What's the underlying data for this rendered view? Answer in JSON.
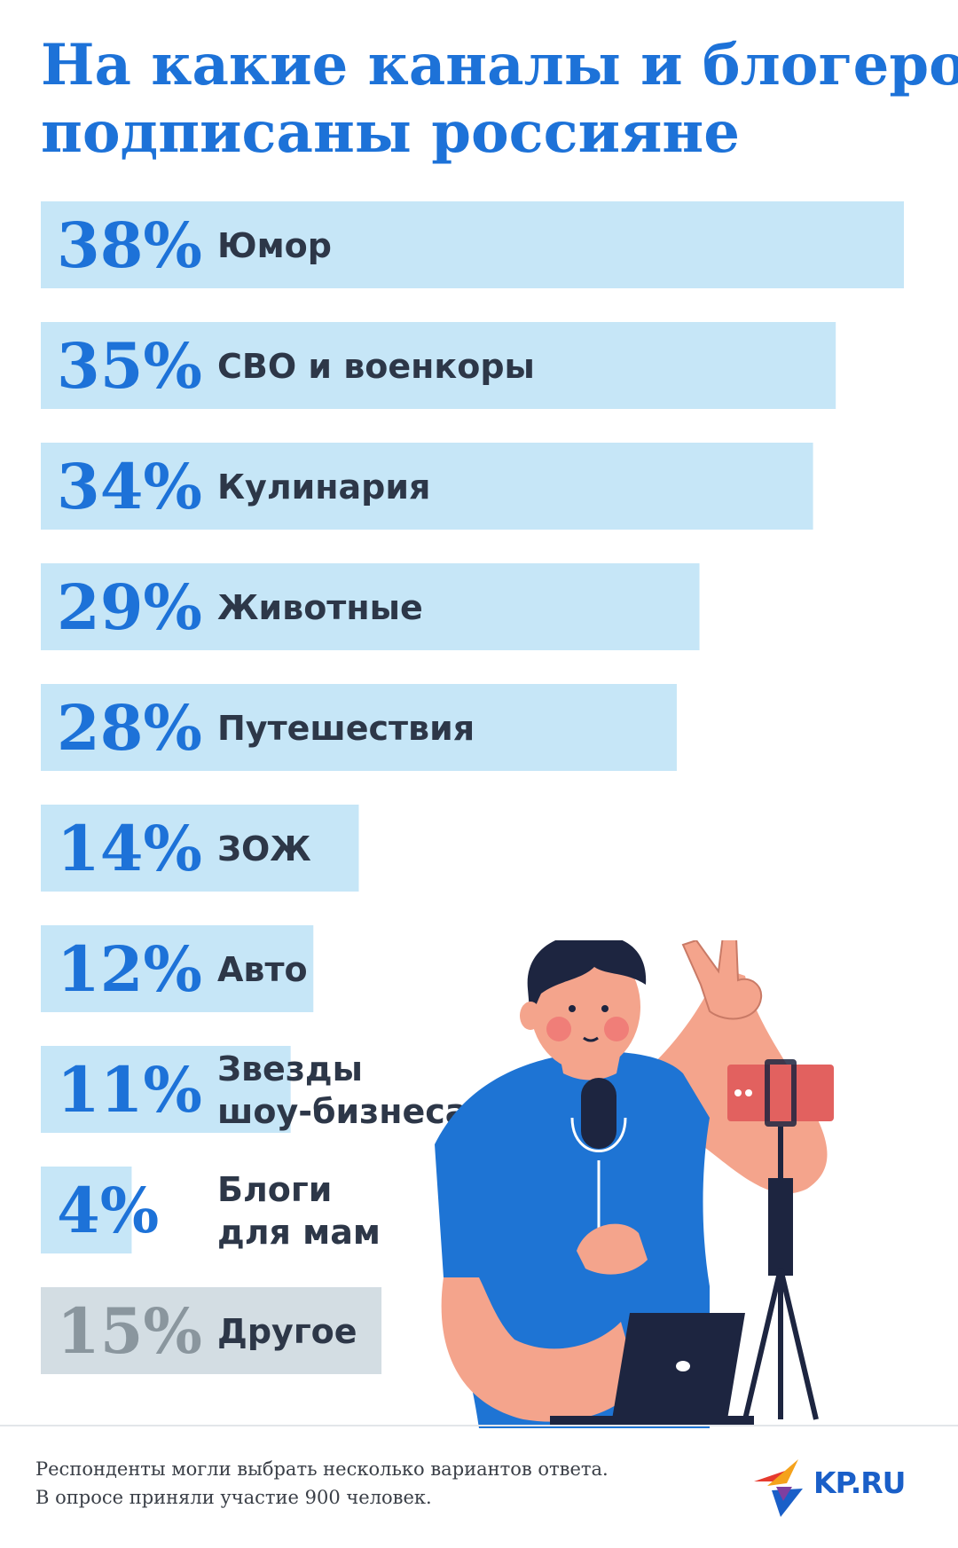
{
  "header": {
    "title_line1": "На какие каналы и блогеров",
    "title_line2": "подписаны россияне"
  },
  "chart_data": {
    "type": "bar",
    "orientation": "horizontal",
    "title": "На какие каналы и блогеров подписаны россияне",
    "unit": "%",
    "categories": [
      "Юмор",
      "СВО и военкоры",
      "Кулинария",
      "Животные",
      "Путешествия",
      "ЗОЖ",
      "Авто",
      "Звезды шоу-бизнеса",
      "Блоги для мам",
      "Другое"
    ],
    "label_lines": [
      [
        "Юмор"
      ],
      [
        "СВО и военкоры"
      ],
      [
        "Кулинария"
      ],
      [
        "Животные"
      ],
      [
        "Путешествия"
      ],
      [
        "ЗОЖ"
      ],
      [
        "Авто"
      ],
      [
        "Звезды",
        "шоу-бизнеса"
      ],
      [
        "Блоги",
        "для мам"
      ],
      [
        "Другое"
      ]
    ],
    "values": [
      38,
      35,
      34,
      29,
      28,
      14,
      12,
      11,
      4,
      15
    ],
    "value_labels": [
      "38%",
      "35%",
      "34%",
      "29%",
      "28%",
      "14%",
      "12%",
      "11%",
      "4%",
      "15%"
    ],
    "colors": {
      "bar": "#c6e6f7",
      "value_text": "#1d72d8",
      "other_bar": "#d3dde3",
      "other_value_text": "#8a969e"
    }
  },
  "footer": {
    "note_line1": "Респонденты могли выбрать несколько вариантов ответа.",
    "note_line2": "В опросе приняли участие 900 человек.",
    "logo_text": "KP.RU"
  },
  "illustration": {
    "icon": "blogger-with-microphone-illustration",
    "colors": {
      "shirt": "#1e74d4",
      "skin": "#f4a48c",
      "hair": "#1d2540",
      "camera": "#e2615f"
    }
  }
}
